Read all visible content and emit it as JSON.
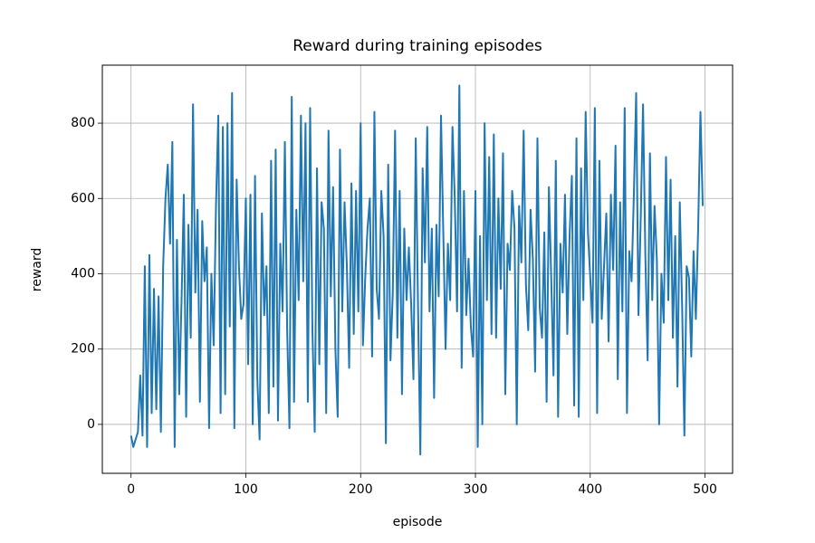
{
  "chart_data": {
    "type": "line",
    "title": "Reward during training episodes",
    "x_label": "episode",
    "y_label": "reward",
    "x": [
      0,
      2,
      4,
      6,
      8,
      10,
      12,
      14,
      16,
      18,
      20,
      22,
      24,
      26,
      28,
      30,
      32,
      34,
      36,
      38,
      40,
      42,
      44,
      46,
      48,
      50,
      52,
      54,
      56,
      58,
      60,
      62,
      64,
      66,
      68,
      70,
      72,
      74,
      76,
      78,
      80,
      82,
      84,
      86,
      88,
      90,
      92,
      94,
      96,
      98,
      100,
      102,
      104,
      106,
      108,
      110,
      112,
      114,
      116,
      118,
      120,
      122,
      124,
      126,
      128,
      130,
      132,
      134,
      136,
      138,
      140,
      142,
      144,
      146,
      148,
      150,
      152,
      154,
      156,
      158,
      160,
      162,
      164,
      166,
      168,
      170,
      172,
      174,
      176,
      178,
      180,
      182,
      184,
      186,
      188,
      190,
      192,
      194,
      196,
      198,
      200,
      202,
      204,
      206,
      208,
      210,
      212,
      214,
      216,
      218,
      220,
      222,
      224,
      226,
      228,
      230,
      232,
      234,
      236,
      238,
      240,
      242,
      244,
      246,
      248,
      250,
      252,
      254,
      256,
      258,
      260,
      262,
      264,
      266,
      268,
      270,
      272,
      274,
      276,
      278,
      280,
      282,
      284,
      286,
      288,
      290,
      292,
      294,
      296,
      298,
      300,
      302,
      304,
      306,
      308,
      310,
      312,
      314,
      316,
      318,
      320,
      322,
      324,
      326,
      328,
      330,
      332,
      334,
      336,
      338,
      340,
      342,
      344,
      346,
      348,
      350,
      352,
      354,
      356,
      358,
      360,
      362,
      364,
      366,
      368,
      370,
      372,
      374,
      376,
      378,
      380,
      382,
      384,
      386,
      388,
      390,
      392,
      394,
      396,
      398,
      400,
      402,
      404,
      406,
      408,
      410,
      412,
      414,
      416,
      418,
      420,
      422,
      424,
      426,
      428,
      430,
      432,
      434,
      436,
      438,
      440,
      442,
      444,
      446,
      448,
      450,
      452,
      454,
      456,
      458,
      460,
      462,
      464,
      466,
      468,
      470,
      472,
      474,
      476,
      478,
      480,
      482,
      484,
      486,
      488,
      490,
      492,
      494,
      496,
      498
    ],
    "series": [
      {
        "name": "reward",
        "color": "#1f77b4",
        "values": [
          -30,
          -60,
          -40,
          -20,
          130,
          -30,
          420,
          -60,
          450,
          30,
          360,
          40,
          340,
          -20,
          420,
          600,
          690,
          480,
          750,
          -60,
          490,
          80,
          330,
          610,
          20,
          530,
          230,
          850,
          350,
          570,
          60,
          540,
          380,
          470,
          -10,
          400,
          210,
          580,
          820,
          30,
          790,
          80,
          800,
          260,
          880,
          -10,
          650,
          420,
          280,
          320,
          600,
          160,
          610,
          0,
          660,
          120,
          -40,
          560,
          290,
          420,
          30,
          700,
          100,
          730,
          10,
          480,
          300,
          750,
          250,
          -10,
          870,
          60,
          570,
          330,
          820,
          380,
          800,
          60,
          840,
          250,
          -20,
          680,
          160,
          590,
          520,
          30,
          780,
          340,
          630,
          200,
          20,
          730,
          300,
          590,
          420,
          150,
          640,
          240,
          620,
          300,
          800,
          210,
          390,
          520,
          600,
          180,
          830,
          360,
          280,
          620,
          500,
          -50,
          690,
          170,
          350,
          780,
          230,
          620,
          80,
          520,
          330,
          470,
          320,
          120,
          760,
          310,
          -80,
          680,
          430,
          790,
          300,
          520,
          70,
          530,
          340,
          820,
          510,
          200,
          480,
          330,
          790,
          600,
          300,
          900,
          150,
          620,
          290,
          440,
          260,
          180,
          620,
          -60,
          500,
          0,
          800,
          330,
          710,
          240,
          770,
          230,
          600,
          360,
          720,
          80,
          480,
          410,
          620,
          520,
          0,
          580,
          430,
          780,
          370,
          250,
          570,
          440,
          140,
          760,
          310,
          230,
          510,
          60,
          630,
          390,
          130,
          700,
          20,
          480,
          350,
          610,
          240,
          500,
          660,
          50,
          760,
          20,
          680,
          330,
          830,
          510,
          390,
          270,
          840,
          30,
          700,
          280,
          420,
          560,
          220,
          610,
          410,
          740,
          120,
          590,
          300,
          840,
          30,
          460,
          380,
          610,
          880,
          290,
          550,
          850,
          450,
          170,
          720,
          330,
          580,
          440,
          0,
          400,
          270,
          710,
          330,
          650,
          230,
          500,
          100,
          590,
          320,
          -30,
          420,
          390,
          180,
          460,
          280,
          520,
          830,
          580
        ]
      }
    ],
    "xlim": [
      -25,
      524
    ],
    "ylim": [
      -130,
      954
    ],
    "xticks": [
      0,
      100,
      200,
      300,
      400,
      500
    ],
    "yticks": [
      0,
      200,
      400,
      600,
      800
    ],
    "grid": true
  }
}
